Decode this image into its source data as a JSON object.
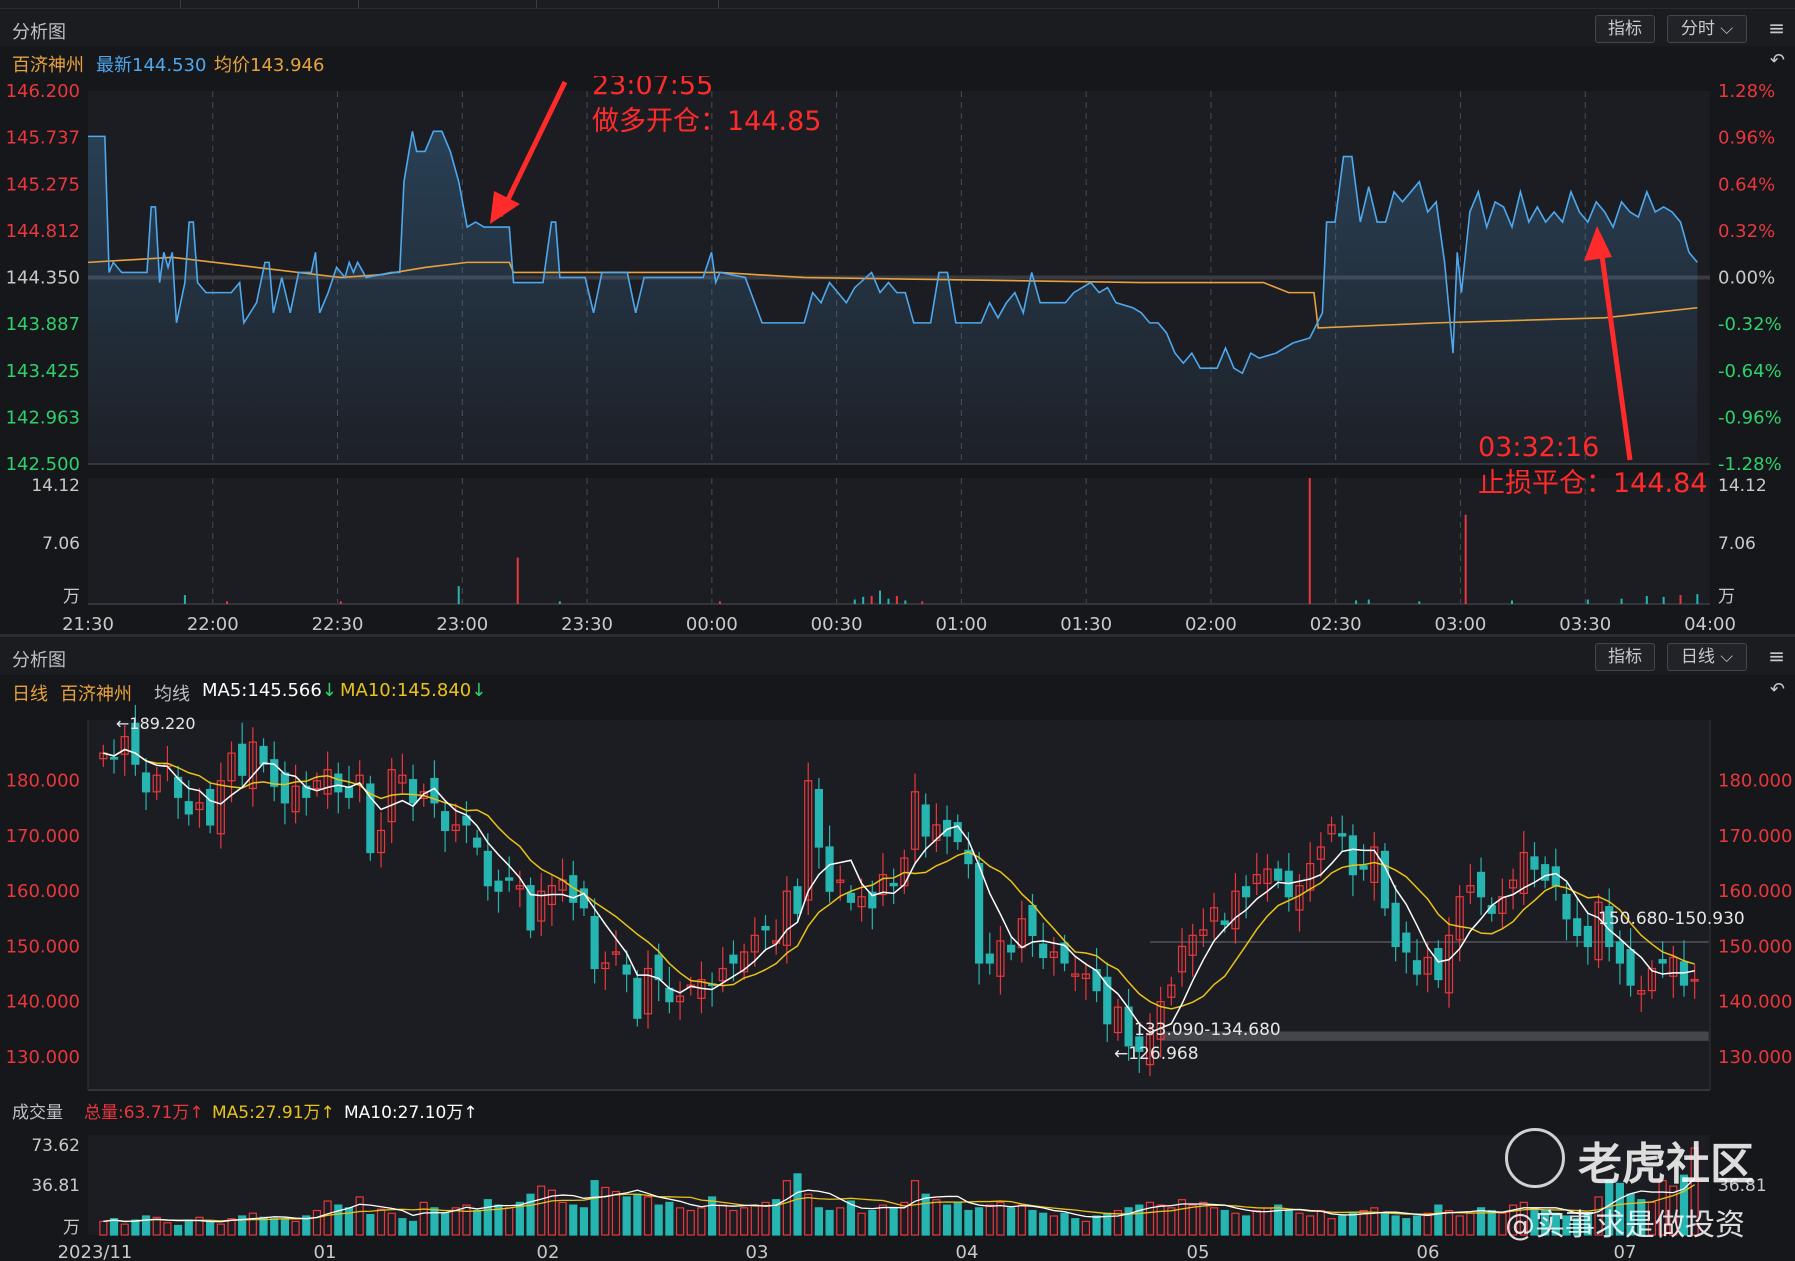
{
  "colors": {
    "up": "#e8373d",
    "down": "#26b5b0",
    "price_line": "#4ea8ee",
    "avg_line": "#e8a23d",
    "ma5": "#ffffff",
    "ma10": "#e9c21a",
    "accent_red": "#ff2b2b",
    "green_label": "#2fd16b"
  },
  "top_panel": {
    "title": "分析图",
    "btn_indicator": "指标",
    "btn_period": "分时",
    "symbol": "百济神州",
    "latest_label": "最新144.530",
    "avg_label": "均价143.946",
    "annotations": {
      "entry_time": "23:07:55",
      "entry_text": "做多开仓：144.85",
      "exit_time": "03:32:16",
      "exit_text": "止损平仓：144.84"
    }
  },
  "intraday_chart": {
    "type": "line",
    "y_ticks_left": [
      "146.200",
      "145.737",
      "145.275",
      "144.812",
      "144.350",
      "143.887",
      "143.425",
      "142.963",
      "142.500"
    ],
    "y_ticks_right": [
      "1.28%",
      "0.96%",
      "0.64%",
      "0.32%",
      "0.00%",
      "-0.32%",
      "-0.64%",
      "-0.96%",
      "-1.28%"
    ],
    "ylim": [
      142.5,
      146.2
    ],
    "prev_close": 144.35,
    "x_ticks": [
      "21:30",
      "22:00",
      "22:30",
      "23:00",
      "23:30",
      "00:00",
      "00:30",
      "01:00",
      "01:30",
      "02:00",
      "02:30",
      "03:00",
      "03:30",
      "04:00"
    ],
    "vol_ticks": [
      "14.12",
      "7.06",
      "万"
    ],
    "vol_max": 14.12,
    "price": [
      [
        0,
        145.75
      ],
      [
        4,
        145.75
      ],
      [
        5,
        144.4
      ],
      [
        6,
        144.5
      ],
      [
        8,
        144.4
      ],
      [
        14,
        144.4
      ],
      [
        15,
        145.05
      ],
      [
        16,
        145.05
      ],
      [
        17,
        144.3
      ],
      [
        18,
        144.6
      ],
      [
        19,
        144.45
      ],
      [
        20,
        144.6
      ],
      [
        21,
        143.9
      ],
      [
        23,
        144.3
      ],
      [
        24,
        144.9
      ],
      [
        25,
        144.9
      ],
      [
        26,
        144.3
      ],
      [
        28,
        144.2
      ],
      [
        34,
        144.2
      ],
      [
        36,
        144.3
      ],
      [
        37,
        143.9
      ],
      [
        40,
        144.1
      ],
      [
        42,
        144.5
      ],
      [
        43,
        144.5
      ],
      [
        44,
        144.0
      ],
      [
        46,
        144.35
      ],
      [
        48,
        144.0
      ],
      [
        50,
        144.4
      ],
      [
        53,
        144.4
      ],
      [
        54,
        144.6
      ],
      [
        55,
        144.0
      ],
      [
        57,
        144.2
      ],
      [
        59,
        144.45
      ],
      [
        61,
        144.35
      ],
      [
        62,
        144.5
      ],
      [
        63,
        144.4
      ],
      [
        64,
        144.5
      ],
      [
        66,
        144.35
      ],
      [
        72,
        144.4
      ],
      [
        74,
        144.4
      ],
      [
        75,
        145.3
      ],
      [
        77,
        145.8
      ],
      [
        78,
        145.6
      ],
      [
        80,
        145.6
      ],
      [
        82,
        145.8
      ],
      [
        84,
        145.8
      ],
      [
        86,
        145.6
      ],
      [
        88,
        145.3
      ],
      [
        90,
        144.85
      ],
      [
        92,
        144.9
      ],
      [
        94,
        144.85
      ],
      [
        100,
        144.85
      ],
      [
        101,
        144.3
      ],
      [
        108,
        144.3
      ],
      [
        110,
        144.9
      ],
      [
        111,
        144.9
      ],
      [
        112,
        144.35
      ],
      [
        118,
        144.35
      ],
      [
        120,
        144.0
      ],
      [
        122,
        144.4
      ],
      [
        128,
        144.4
      ],
      [
        130,
        144.0
      ],
      [
        132,
        144.35
      ],
      [
        146,
        144.35
      ],
      [
        148,
        144.6
      ],
      [
        149,
        144.3
      ],
      [
        150,
        144.4
      ],
      [
        156,
        144.35
      ],
      [
        160,
        143.9
      ],
      [
        170,
        143.9
      ],
      [
        172,
        144.2
      ],
      [
        174,
        144.1
      ],
      [
        176,
        144.3
      ],
      [
        180,
        144.1
      ],
      [
        182,
        144.25
      ],
      [
        186,
        144.4
      ],
      [
        188,
        144.2
      ],
      [
        190,
        144.3
      ],
      [
        192,
        144.2
      ],
      [
        194,
        144.2
      ],
      [
        196,
        143.9
      ],
      [
        200,
        143.9
      ],
      [
        202,
        144.4
      ],
      [
        204,
        144.4
      ],
      [
        206,
        143.9
      ],
      [
        212,
        143.9
      ],
      [
        214,
        144.1
      ],
      [
        216,
        143.95
      ],
      [
        218,
        144.1
      ],
      [
        220,
        144.2
      ],
      [
        222,
        144.0
      ],
      [
        224,
        144.4
      ],
      [
        226,
        144.1
      ],
      [
        232,
        144.1
      ],
      [
        234,
        144.2
      ],
      [
        236,
        144.25
      ],
      [
        238,
        144.3
      ],
      [
        240,
        144.2
      ],
      [
        242,
        144.25
      ],
      [
        244,
        144.1
      ],
      [
        248,
        144.05
      ],
      [
        250,
        144.0
      ],
      [
        252,
        143.9
      ],
      [
        254,
        143.9
      ],
      [
        256,
        143.8
      ],
      [
        258,
        143.6
      ],
      [
        260,
        143.5
      ],
      [
        262,
        143.6
      ],
      [
        264,
        143.45
      ],
      [
        268,
        143.45
      ],
      [
        270,
        143.65
      ],
      [
        272,
        143.45
      ],
      [
        274,
        143.4
      ],
      [
        276,
        143.6
      ],
      [
        278,
        143.55
      ],
      [
        282,
        143.6
      ],
      [
        286,
        143.7
      ],
      [
        290,
        143.75
      ],
      [
        293,
        144.0
      ],
      [
        294,
        144.9
      ],
      [
        296,
        144.9
      ],
      [
        298,
        145.55
      ],
      [
        300,
        145.55
      ],
      [
        302,
        144.9
      ],
      [
        304,
        145.25
      ],
      [
        306,
        144.9
      ],
      [
        308,
        144.9
      ],
      [
        310,
        145.2
      ],
      [
        312,
        145.1
      ],
      [
        314,
        145.2
      ],
      [
        316,
        145.3
      ],
      [
        318,
        145.0
      ],
      [
        320,
        145.1
      ],
      [
        322,
        144.5
      ],
      [
        324,
        143.6
      ],
      [
        325,
        144.6
      ],
      [
        326,
        144.2
      ],
      [
        328,
        145.0
      ],
      [
        330,
        145.2
      ],
      [
        332,
        144.85
      ],
      [
        334,
        145.1
      ],
      [
        336,
        145.05
      ],
      [
        338,
        144.85
      ],
      [
        340,
        145.2
      ],
      [
        342,
        144.9
      ],
      [
        344,
        145.05
      ],
      [
        346,
        144.9
      ],
      [
        348,
        145.0
      ],
      [
        350,
        144.9
      ],
      [
        352,
        145.2
      ],
      [
        354,
        145.0
      ],
      [
        356,
        144.9
      ],
      [
        358,
        145.1
      ],
      [
        360,
        145.0
      ],
      [
        362,
        144.85
      ],
      [
        364,
        145.1
      ],
      [
        366,
        145.0
      ],
      [
        368,
        144.95
      ],
      [
        370,
        145.2
      ],
      [
        372,
        145.0
      ],
      [
        374,
        145.05
      ],
      [
        376,
        145.0
      ],
      [
        378,
        144.9
      ],
      [
        380,
        144.6
      ],
      [
        382,
        144.5
      ]
    ],
    "avg": [
      [
        0,
        144.5
      ],
      [
        20,
        144.55
      ],
      [
        40,
        144.45
      ],
      [
        60,
        144.35
      ],
      [
        70,
        144.38
      ],
      [
        80,
        144.45
      ],
      [
        90,
        144.5
      ],
      [
        100,
        144.5
      ],
      [
        101,
        144.4
      ],
      [
        150,
        144.4
      ],
      [
        170,
        144.35
      ],
      [
        250,
        144.3
      ],
      [
        279,
        144.3
      ],
      [
        285,
        144.2
      ],
      [
        291,
        144.2
      ],
      [
        292,
        143.85
      ],
      [
        320,
        143.9
      ],
      [
        360,
        143.95
      ],
      [
        382,
        144.05
      ]
    ],
    "volume": [
      [
        23,
        1.0
      ],
      [
        33,
        0.3
      ],
      [
        60,
        0.3
      ],
      [
        88,
        2.0
      ],
      [
        102,
        5.2
      ],
      [
        112,
        0.3
      ],
      [
        150,
        0.3
      ],
      [
        182,
        0.5
      ],
      [
        184,
        0.8
      ],
      [
        186,
        0.9
      ],
      [
        188,
        1.5
      ],
      [
        190,
        0.6
      ],
      [
        192,
        0.9
      ],
      [
        194,
        0.4
      ],
      [
        198,
        0.3
      ],
      [
        290,
        14.12
      ],
      [
        301,
        0.4
      ],
      [
        304,
        0.5
      ],
      [
        316,
        0.3
      ],
      [
        327,
        10.0
      ],
      [
        338,
        0.4
      ],
      [
        356,
        0.5
      ],
      [
        364,
        0.6
      ],
      [
        370,
        0.9
      ],
      [
        374,
        0.8
      ],
      [
        378,
        1.0
      ],
      [
        382,
        1.1
      ]
    ]
  },
  "bottom_panel": {
    "title": "分析图",
    "btn_indicator": "指标",
    "btn_period": "日线",
    "period_label": "日线",
    "symbol": "百济神州",
    "ma_title": "均线",
    "ma5_label": "MA5:145.566",
    "ma10_label": "MA10:145.840",
    "high_label": "←189.220",
    "low_label": "←126.968",
    "range_label_1": "150.680-150.930",
    "range_label_2": "133.090-134.680"
  },
  "kline_chart": {
    "type": "candlestick",
    "y_ticks": [
      "180.000",
      "170.000",
      "160.000",
      "150.000",
      "140.000",
      "130.000"
    ],
    "ylim": [
      124,
      191
    ],
    "x_ticks": [
      "2023/11",
      "01",
      "02",
      "03",
      "04",
      "05",
      "06",
      "07"
    ],
    "volume_title": "成交量",
    "vol_total_label": "总量:63.71万",
    "vol_ma5_label": "MA5:27.91万",
    "vol_ma10_label": "MA10:27.10万",
    "vol_ticks": [
      "73.62",
      "36.81",
      "万"
    ],
    "vol_max": 73.62,
    "closes": [
      185,
      184,
      188,
      183,
      178,
      181,
      183,
      177,
      174,
      176,
      172,
      180,
      185,
      181,
      187,
      183,
      179,
      176,
      179,
      177,
      180,
      182,
      178,
      177,
      181,
      167,
      171,
      182,
      181,
      176,
      178,
      176,
      171,
      172,
      172,
      168,
      161,
      160,
      162,
      161,
      153,
      160,
      161,
      162,
      158,
      157,
      146,
      147,
      149,
      145,
      137,
      146,
      144,
      140,
      141,
      143,
      144,
      143,
      146,
      147,
      149,
      152,
      153,
      151,
      160,
      156,
      180,
      168,
      160,
      162,
      158,
      159,
      157,
      163,
      161,
      166,
      178,
      170,
      172,
      170,
      169,
      165,
      147,
      147,
      151,
      149,
      155,
      152,
      148,
      149,
      147,
      145,
      145,
      142,
      136,
      139,
      132,
      131,
      134,
      140,
      143,
      150,
      152,
      153,
      157,
      154,
      160,
      159,
      163,
      164,
      162,
      159,
      161,
      165,
      168,
      172,
      170,
      163,
      164,
      168,
      157,
      150,
      149,
      145,
      148,
      144,
      152,
      159,
      161,
      159,
      156,
      159,
      162,
      167,
      164,
      162,
      161,
      155,
      152,
      150,
      158,
      150,
      147,
      143,
      142,
      146,
      147,
      148,
      143,
      144
    ],
    "volumes": [
      10,
      12,
      8,
      11,
      14,
      13,
      9,
      7,
      11,
      13,
      10,
      8,
      12,
      14,
      16,
      13,
      12,
      11,
      10,
      14,
      18,
      25,
      22,
      20,
      28,
      15,
      19,
      16,
      12,
      10,
      24,
      20,
      16,
      20,
      22,
      18,
      26,
      22,
      20,
      24,
      30,
      36,
      33,
      24,
      22,
      20,
      40,
      35,
      32,
      28,
      30,
      28,
      22,
      24,
      20,
      18,
      20,
      28,
      22,
      18,
      20,
      22,
      24,
      26,
      40,
      45,
      30,
      20,
      18,
      20,
      25,
      16,
      18,
      22,
      20,
      24,
      40,
      30,
      26,
      22,
      24,
      18,
      20,
      22,
      24,
      20,
      22,
      18,
      16,
      14,
      16,
      12,
      10,
      14,
      16,
      18,
      20,
      22,
      24,
      22,
      20,
      26,
      22,
      24,
      20,
      18,
      16,
      14,
      18,
      20,
      22,
      18,
      16,
      14,
      18,
      12,
      14,
      16,
      18,
      20,
      16,
      14,
      12,
      14,
      16,
      22,
      18,
      14,
      16,
      20,
      18,
      16,
      22,
      24,
      20,
      18,
      16,
      14,
      12,
      16,
      28,
      40,
      38,
      30,
      26,
      24,
      40,
      36,
      44,
      64
    ]
  },
  "watermark": {
    "brand": "老虎社区",
    "author": "@实事求是做投资"
  }
}
